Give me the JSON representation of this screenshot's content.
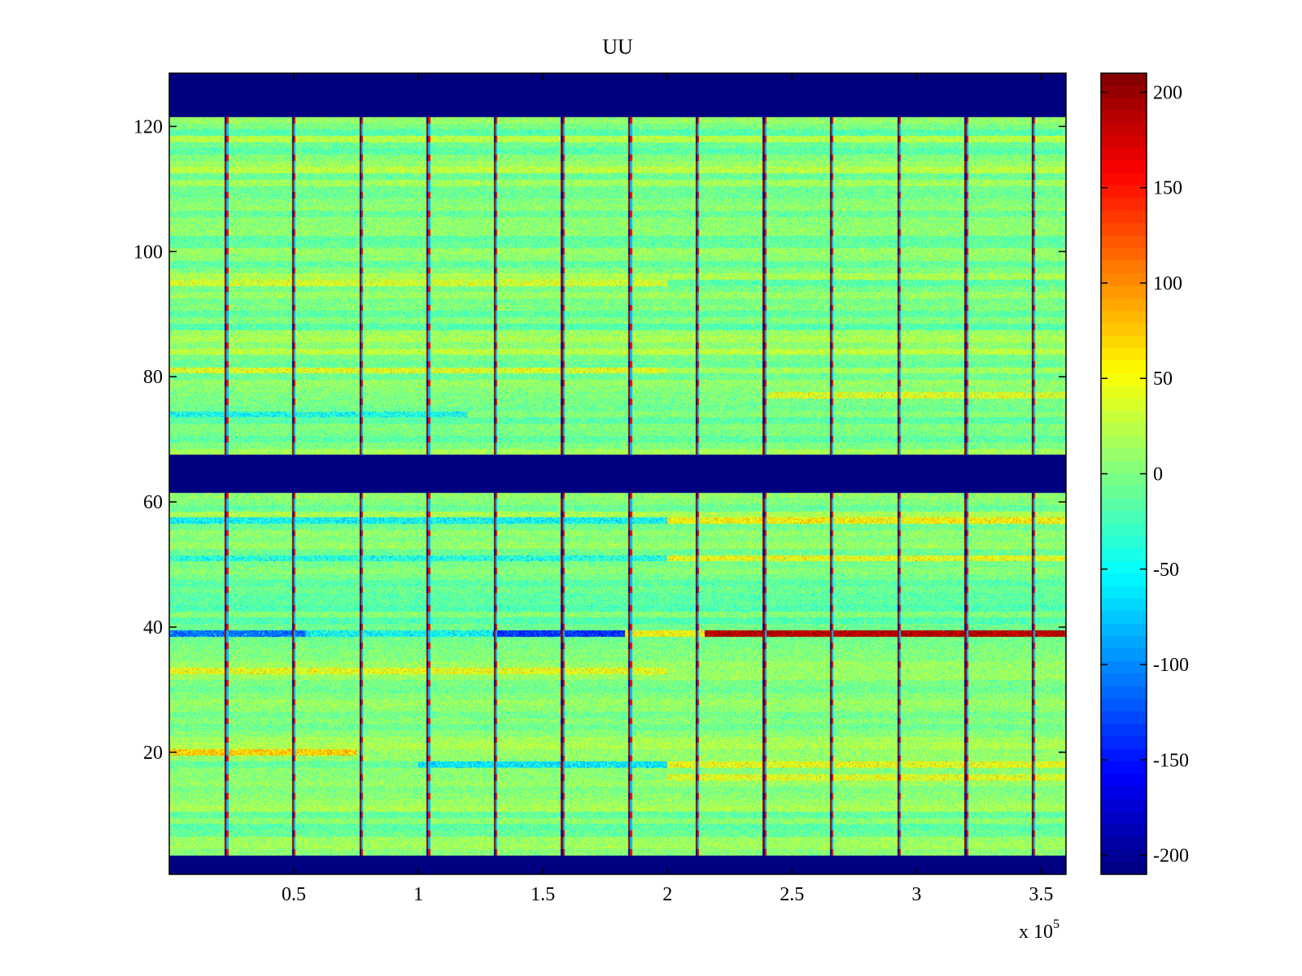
{
  "chart_data": {
    "type": "heatmap",
    "title": "UU",
    "xlabel": "",
    "ylabel": "",
    "x_multiplier_label": "x 10",
    "x_multiplier_exponent": "5",
    "xlim": [
      0,
      360000
    ],
    "ylim": [
      0.5,
      128.5
    ],
    "xticks": [
      {
        "value": 50000,
        "label": "0.5"
      },
      {
        "value": 100000,
        "label": "1"
      },
      {
        "value": 150000,
        "label": "1.5"
      },
      {
        "value": 200000,
        "label": "2"
      },
      {
        "value": 250000,
        "label": "2.5"
      },
      {
        "value": 300000,
        "label": "3"
      },
      {
        "value": 350000,
        "label": "3.5"
      }
    ],
    "yticks": [
      {
        "value": 20,
        "label": "20"
      },
      {
        "value": 40,
        "label": "40"
      },
      {
        "value": 60,
        "label": "60"
      },
      {
        "value": 80,
        "label": "80"
      },
      {
        "value": 100,
        "label": "100"
      },
      {
        "value": 120,
        "label": "120"
      }
    ],
    "colorbar": {
      "colormap": "jet",
      "clim": [
        -210,
        210
      ],
      "ticks": [
        {
          "value": 200,
          "label": "200"
        },
        {
          "value": 150,
          "label": "150"
        },
        {
          "value": 100,
          "label": "100"
        },
        {
          "value": 50,
          "label": "50"
        },
        {
          "value": 0,
          "label": "0"
        },
        {
          "value": -50,
          "label": "-50"
        },
        {
          "value": -100,
          "label": "-100"
        },
        {
          "value": -150,
          "label": "-150"
        },
        {
          "value": -200,
          "label": "-200"
        }
      ]
    },
    "masked_row_ranges": [
      [
        0.5,
        3.5
      ],
      [
        61.5,
        67.5
      ],
      [
        121.5,
        128.5
      ]
    ],
    "masked_value": -210,
    "background_mean": 0,
    "background_noise": 30,
    "periodic_spikes": {
      "x_positions": [
        23000,
        50000,
        77000,
        104000,
        131000,
        158000,
        185000,
        212000,
        239000,
        266000,
        293000,
        320000,
        347000
      ],
      "value_high": 200,
      "value_low": -200
    },
    "row_features": [
      {
        "row": 39,
        "x_range": [
          0,
          55000
        ],
        "value": -110
      },
      {
        "row": 39,
        "x_range": [
          55000,
          130000
        ],
        "value": -50
      },
      {
        "row": 39,
        "x_range": [
          130000,
          183000
        ],
        "value": -140
      },
      {
        "row": 39,
        "x_range": [
          183000,
          215000
        ],
        "value": 50
      },
      {
        "row": 39,
        "x_range": [
          215000,
          360000
        ],
        "value": 190
      },
      {
        "row": 20,
        "x_range": [
          0,
          75000
        ],
        "value": 70
      },
      {
        "row": 18,
        "x_range": [
          100000,
          200000
        ],
        "value": -60
      },
      {
        "row": 18,
        "x_range": [
          200000,
          360000
        ],
        "value": 45
      },
      {
        "row": 16,
        "x_range": [
          200000,
          360000
        ],
        "value": 40
      },
      {
        "row": 57,
        "x_range": [
          0,
          200000
        ],
        "value": -50
      },
      {
        "row": 57,
        "x_range": [
          200000,
          360000
        ],
        "value": 55
      },
      {
        "row": 51,
        "x_range": [
          0,
          200000
        ],
        "value": -40
      },
      {
        "row": 51,
        "x_range": [
          200000,
          360000
        ],
        "value": 45
      },
      {
        "row": 33,
        "x_range": [
          0,
          200000
        ],
        "value": 45
      },
      {
        "row": 74,
        "x_range": [
          0,
          120000
        ],
        "value": -45
      },
      {
        "row": 77,
        "x_range": [
          240000,
          360000
        ],
        "value": 40
      },
      {
        "row": 81,
        "x_range": [
          0,
          200000
        ],
        "value": 40
      },
      {
        "row": 95,
        "x_range": [
          0,
          200000
        ],
        "value": 35
      }
    ]
  }
}
